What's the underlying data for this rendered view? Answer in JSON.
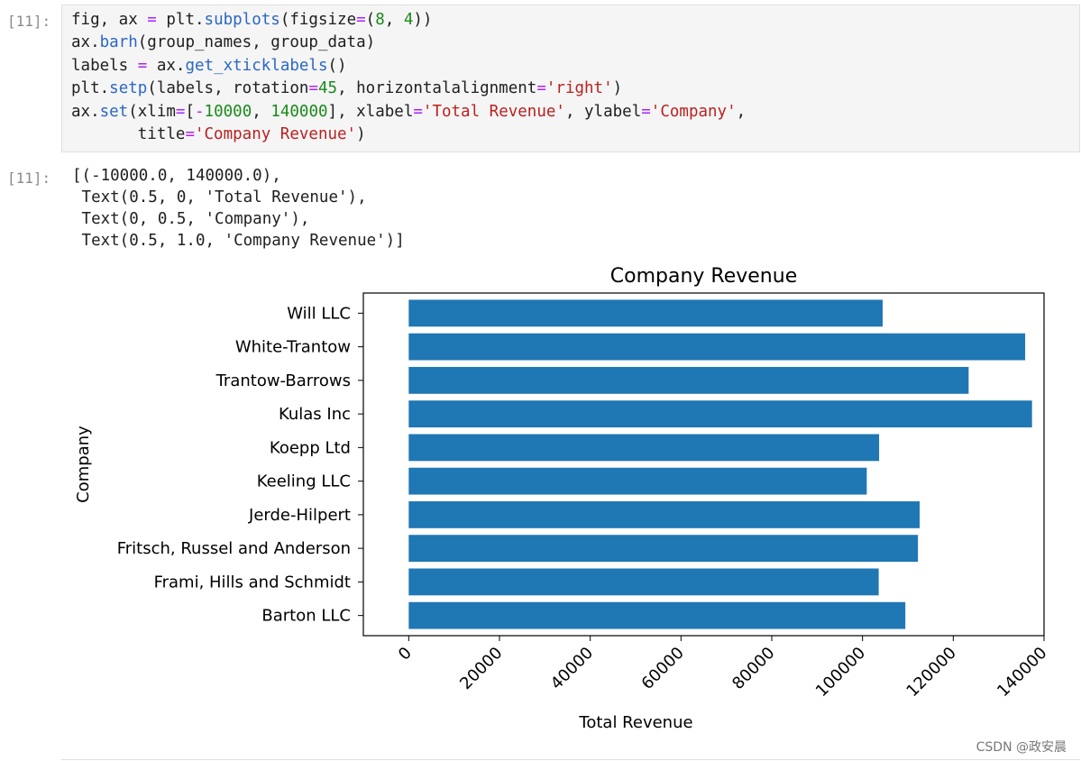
{
  "input_prompt": "[11]:",
  "output_prompt": "[11]:",
  "code_lines": [
    [
      {
        "t": "fig, ax ",
        "c": ""
      },
      {
        "t": "=",
        "c": "op"
      },
      {
        "t": " plt.",
        "c": ""
      },
      {
        "t": "subplots",
        "c": "fn"
      },
      {
        "t": "(figsize",
        "c": ""
      },
      {
        "t": "=",
        "c": "op"
      },
      {
        "t": "(",
        "c": ""
      },
      {
        "t": "8",
        "c": "num"
      },
      {
        "t": ", ",
        "c": ""
      },
      {
        "t": "4",
        "c": "num"
      },
      {
        "t": "))",
        "c": ""
      }
    ],
    [
      {
        "t": "ax.",
        "c": ""
      },
      {
        "t": "barh",
        "c": "fn"
      },
      {
        "t": "(group_names, group_data)",
        "c": ""
      }
    ],
    [
      {
        "t": "labels ",
        "c": ""
      },
      {
        "t": "=",
        "c": "op"
      },
      {
        "t": " ax.",
        "c": ""
      },
      {
        "t": "get_xticklabels",
        "c": "fn"
      },
      {
        "t": "()",
        "c": ""
      }
    ],
    [
      {
        "t": "plt.",
        "c": ""
      },
      {
        "t": "setp",
        "c": "fn"
      },
      {
        "t": "(labels, rotation",
        "c": ""
      },
      {
        "t": "=",
        "c": "op"
      },
      {
        "t": "45",
        "c": "num"
      },
      {
        "t": ", horizontalalignment",
        "c": ""
      },
      {
        "t": "=",
        "c": "op"
      },
      {
        "t": "'right'",
        "c": "str"
      },
      {
        "t": ")",
        "c": ""
      }
    ],
    [
      {
        "t": "ax.",
        "c": ""
      },
      {
        "t": "set",
        "c": "fn"
      },
      {
        "t": "(xlim",
        "c": ""
      },
      {
        "t": "=",
        "c": "op"
      },
      {
        "t": "[",
        "c": ""
      },
      {
        "t": "-",
        "c": "op"
      },
      {
        "t": "10000",
        "c": "num"
      },
      {
        "t": ", ",
        "c": ""
      },
      {
        "t": "140000",
        "c": "num"
      },
      {
        "t": "], xlabel",
        "c": ""
      },
      {
        "t": "=",
        "c": "op"
      },
      {
        "t": "'Total Revenue'",
        "c": "str"
      },
      {
        "t": ", ylabel",
        "c": ""
      },
      {
        "t": "=",
        "c": "op"
      },
      {
        "t": "'Company'",
        "c": "str"
      },
      {
        "t": ",",
        "c": ""
      }
    ],
    [
      {
        "t": "       title",
        "c": ""
      },
      {
        "t": "=",
        "c": "op"
      },
      {
        "t": "'Company Revenue'",
        "c": "str"
      },
      {
        "t": ")",
        "c": ""
      }
    ]
  ],
  "output_lines": [
    "[(-10000.0, 140000.0),",
    " Text(0.5, 0, 'Total Revenue'),",
    " Text(0, 0.5, 'Company'),",
    " Text(0.5, 1.0, 'Company Revenue')]"
  ],
  "chart_data": {
    "type": "bar",
    "orientation": "horizontal",
    "title": "Company Revenue",
    "xlabel": "Total Revenue",
    "ylabel": "Company",
    "xlim": [
      -10000,
      140000
    ],
    "xticks": [
      0,
      20000,
      40000,
      60000,
      80000,
      100000,
      120000,
      140000
    ],
    "xtick_labels": [
      "0",
      "20000",
      "40000",
      "60000",
      "80000",
      "100000",
      "120000",
      "140000"
    ],
    "xtick_rotation": 45,
    "categories": [
      "Barton LLC",
      "Frami, Hills and Schmidt",
      "Fritsch, Russel and Anderson",
      "Jerde-Hilpert",
      "Keeling LLC",
      "Koepp Ltd",
      "Kulas Inc",
      "Trantow-Barrows",
      "White-Trantow",
      "Will LLC"
    ],
    "values": [
      109438,
      103569,
      112214,
      112591,
      100934,
      103660,
      137352,
      123381,
      135841,
      104437
    ],
    "bar_color": "#1f77b4",
    "grid": false
  },
  "watermark": "CSDN @政安晨"
}
